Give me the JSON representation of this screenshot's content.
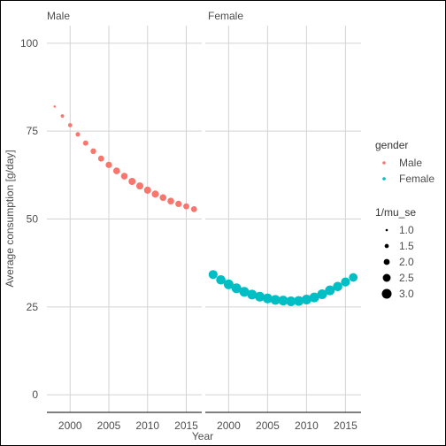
{
  "chart_data": {
    "type": "scatter",
    "facets": [
      "Male",
      "Female"
    ],
    "xlabel": "Year",
    "ylabel": "Average consumption [g/day]",
    "xlim": [
      1997,
      2017
    ],
    "ylim": [
      -5,
      105
    ],
    "x_ticks": [
      2000,
      2005,
      2010,
      2015
    ],
    "y_ticks": [
      0,
      25,
      50,
      75,
      100
    ],
    "grid": true,
    "legend_position": "right",
    "series": [
      {
        "name": "Male",
        "facet": "Male",
        "color": "#F8766D",
        "x": [
          1998,
          1999,
          2000,
          2001,
          2002,
          2003,
          2004,
          2005,
          2006,
          2007,
          2008,
          2009,
          2010,
          2011,
          2012,
          2013,
          2014,
          2015,
          2016
        ],
        "y": [
          82,
          79.3,
          76.7,
          74.1,
          71.6,
          69.3,
          67.2,
          65.4,
          63.7,
          62.2,
          60.7,
          59.4,
          58.2,
          57.1,
          56.1,
          55.1,
          54.3,
          53.6,
          52.8
        ],
        "size": [
          1.0,
          1.3,
          1.5,
          1.6,
          1.8,
          1.9,
          2.0,
          2.1,
          2.2,
          2.2,
          2.3,
          2.3,
          2.3,
          2.3,
          2.2,
          2.2,
          2.1,
          2.0,
          2.0
        ]
      },
      {
        "name": "Female",
        "facet": "Female",
        "color": "#00BFC4",
        "x": [
          1998,
          1999,
          2000,
          2001,
          2002,
          2003,
          2004,
          2005,
          2006,
          2007,
          2008,
          2009,
          2010,
          2011,
          2012,
          2013,
          2014,
          2015,
          2016
        ],
        "y": [
          34.2,
          32.7,
          31.4,
          30.3,
          29.3,
          28.5,
          27.9,
          27.4,
          27.0,
          26.8,
          26.6,
          26.7,
          27.1,
          27.7,
          28.6,
          29.7,
          30.8,
          32.1,
          33.4
        ],
        "size": [
          2.8,
          2.9,
          3.0,
          3.0,
          3.0,
          3.0,
          3.0,
          3.0,
          3.0,
          3.0,
          3.0,
          3.0,
          3.0,
          3.0,
          3.0,
          3.0,
          2.9,
          2.8,
          2.7
        ]
      }
    ],
    "legend": {
      "color_title": "gender",
      "color_entries": [
        {
          "label": "Male",
          "color": "#F8766D"
        },
        {
          "label": "Female",
          "color": "#00BFC4"
        }
      ],
      "size_title": "1/mu_se",
      "size_entries": [
        {
          "label": "1.0",
          "value": 1.0
        },
        {
          "label": "1.5",
          "value": 1.5
        },
        {
          "label": "2.0",
          "value": 2.0
        },
        {
          "label": "2.5",
          "value": 2.5
        },
        {
          "label": "3.0",
          "value": 3.0
        }
      ]
    }
  }
}
